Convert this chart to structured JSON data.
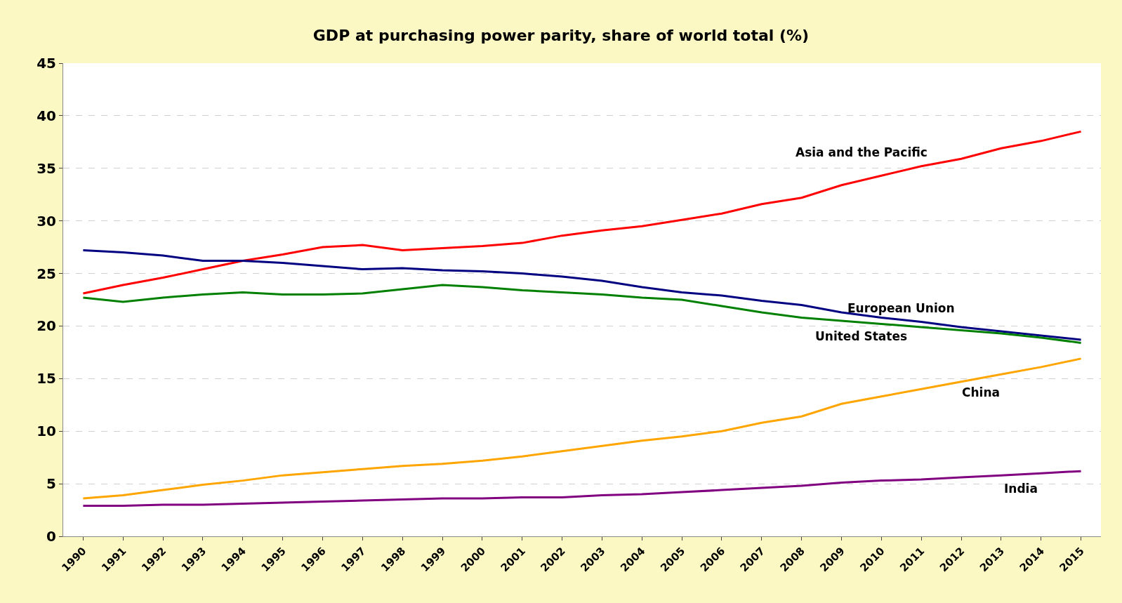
{
  "chart_data": {
    "type": "line",
    "title": "GDP at purchasing power parity, share of world total (%)",
    "categories": [
      "1990",
      "1991",
      "1992",
      "1993",
      "1994",
      "1995",
      "1996",
      "1997",
      "1998",
      "1999",
      "2000",
      "2001",
      "2002",
      "2003",
      "2004",
      "2005",
      "2006",
      "2007",
      "2008",
      "2009",
      "2010",
      "2011",
      "2012",
      "2013",
      "2014",
      "2015"
    ],
    "series": [
      {
        "name": "Asia and the Pacific",
        "color": "#ff0000",
        "values": [
          23.1,
          23.9,
          24.6,
          25.4,
          26.2,
          26.8,
          27.5,
          27.7,
          27.2,
          27.4,
          27.6,
          27.9,
          28.6,
          29.1,
          29.5,
          30.1,
          30.7,
          31.6,
          32.2,
          33.4,
          34.3,
          35.2,
          35.9,
          36.9,
          37.6,
          38.5
        ]
      },
      {
        "name": "European Union",
        "color": "#000080",
        "values": [
          27.2,
          27.0,
          26.7,
          26.2,
          26.2,
          26.0,
          25.7,
          25.4,
          25.5,
          25.3,
          25.2,
          25.0,
          24.7,
          24.3,
          23.7,
          23.2,
          22.9,
          22.4,
          22.0,
          21.3,
          20.8,
          20.4,
          19.9,
          19.5,
          19.1,
          18.7
        ]
      },
      {
        "name": "United States",
        "color": "#008000",
        "values": [
          22.7,
          22.3,
          22.7,
          23.0,
          23.2,
          23.0,
          23.0,
          23.1,
          23.5,
          23.9,
          23.7,
          23.4,
          23.2,
          23.0,
          22.7,
          22.5,
          21.9,
          21.3,
          20.8,
          20.5,
          20.2,
          19.9,
          19.6,
          19.3,
          18.9,
          18.4
        ]
      },
      {
        "name": "China",
        "color": "#ffa500",
        "values": [
          3.6,
          3.9,
          4.4,
          4.9,
          5.3,
          5.8,
          6.1,
          6.4,
          6.7,
          6.9,
          7.2,
          7.6,
          8.1,
          8.6,
          9.1,
          9.5,
          10.0,
          10.8,
          11.4,
          12.6,
          13.3,
          14.0,
          14.7,
          15.4,
          16.1,
          16.9
        ]
      },
      {
        "name": "India",
        "color": "#800080",
        "values": [
          2.9,
          2.9,
          3.0,
          3.0,
          3.1,
          3.2,
          3.3,
          3.4,
          3.5,
          3.6,
          3.6,
          3.7,
          3.7,
          3.9,
          4.0,
          4.2,
          4.4,
          4.6,
          4.8,
          5.1,
          5.3,
          5.4,
          5.6,
          5.8,
          6.0,
          6.2
        ]
      }
    ],
    "ylim": [
      0,
      45
    ],
    "yticks": [
      0,
      5,
      10,
      15,
      20,
      25,
      30,
      35,
      40,
      45
    ],
    "grid": "y",
    "legend": false,
    "marker": "none",
    "line_style": "solid"
  }
}
